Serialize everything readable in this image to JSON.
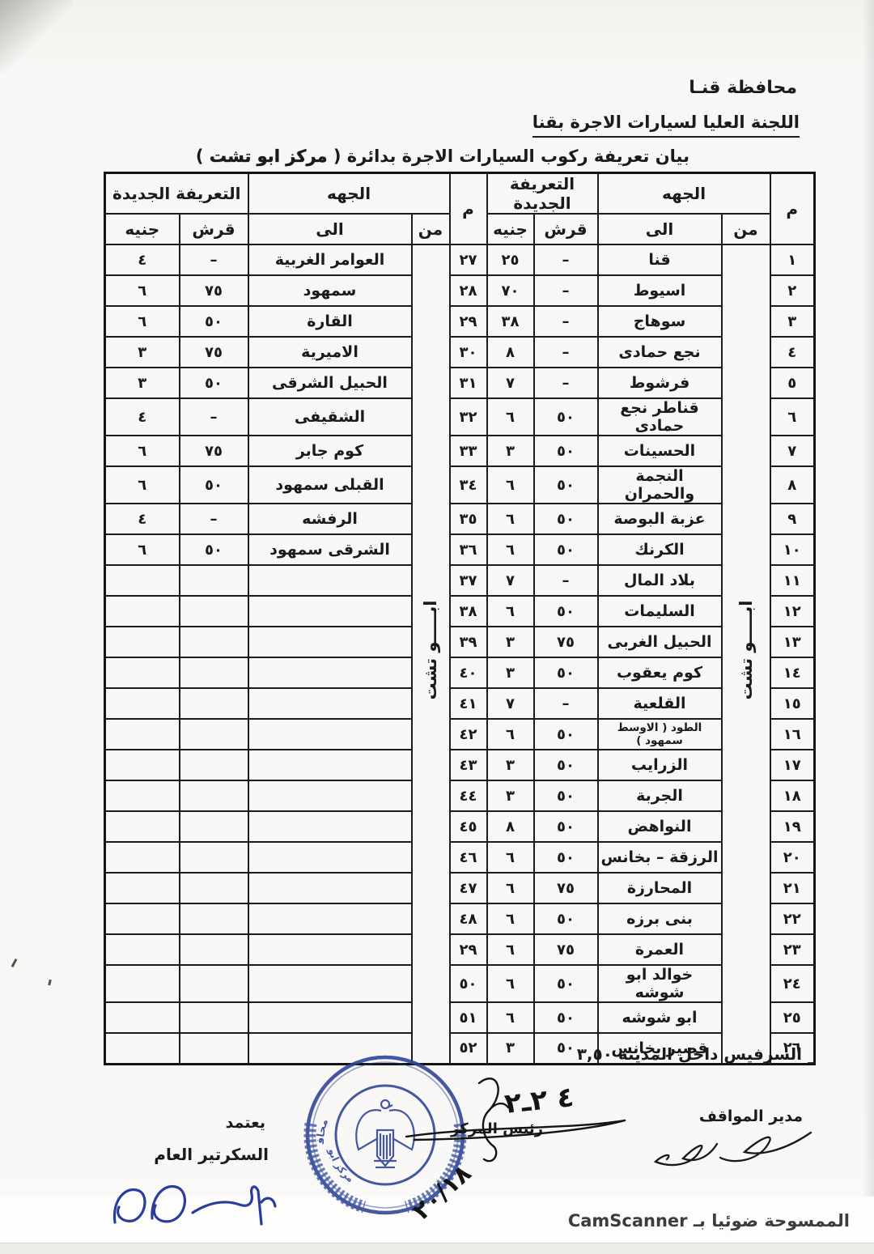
{
  "header": {
    "governorate": "محافظة قنـا",
    "committee": "اللجنة العليا لسيارات الاجرة بقنا",
    "title_prefix": "بيان تعريفة ركوب السيارات الاجرة بدائرة ( ",
    "title_name": "مركز ابو تشت",
    "title_suffix": " )"
  },
  "table": {
    "headers": {
      "m": "م",
      "direction_group": "الجهه",
      "from": "من",
      "to": "الى",
      "tariff_group": "التعريفة الجديدة",
      "qirsh": "قرش",
      "geneh": "جنيه"
    },
    "from_vertical": "ابـــــو تشت",
    "rows": [
      {
        "m_r": "١",
        "to_r": "قنا",
        "qirsh_r": "–",
        "geneh_r": "٢٥",
        "m_l": "٢٧",
        "to_l": "العوامر الغربية",
        "qirsh_l": "–",
        "geneh_l": "٤"
      },
      {
        "m_r": "٢",
        "to_r": "اسيوط",
        "qirsh_r": "–",
        "geneh_r": "٧٠",
        "m_l": "٢٨",
        "to_l": "سمهود",
        "qirsh_l": "٧٥",
        "geneh_l": "٦"
      },
      {
        "m_r": "٣",
        "to_r": "سوهاج",
        "qirsh_r": "–",
        "geneh_r": "٣٨",
        "m_l": "٢٩",
        "to_l": "القارة",
        "qirsh_l": "٥٠",
        "geneh_l": "٦"
      },
      {
        "m_r": "٤",
        "to_r": "نجع حمادى",
        "qirsh_r": "–",
        "geneh_r": "٨",
        "m_l": "٣٠",
        "to_l": "الاميرية",
        "qirsh_l": "٧٥",
        "geneh_l": "٣"
      },
      {
        "m_r": "٥",
        "to_r": "فرشوط",
        "qirsh_r": "–",
        "geneh_r": "٧",
        "m_l": "٣١",
        "to_l": "الحبيل الشرقى",
        "qirsh_l": "٥٠",
        "geneh_l": "٣"
      },
      {
        "m_r": "٦",
        "to_r": "قناطر نجع حمادى",
        "qirsh_r": "٥٠",
        "geneh_r": "٦",
        "m_l": "٣٢",
        "to_l": "الشقيفى",
        "qirsh_l": "–",
        "geneh_l": "٤"
      },
      {
        "m_r": "٧",
        "to_r": "الحسينات",
        "qirsh_r": "٥٠",
        "geneh_r": "٣",
        "m_l": "٣٣",
        "to_l": "كوم جابر",
        "qirsh_l": "٧٥",
        "geneh_l": "٦"
      },
      {
        "m_r": "٨",
        "to_r": "النجمة والحمران",
        "qirsh_r": "٥٠",
        "geneh_r": "٦",
        "m_l": "٣٤",
        "to_l": "القبلى سمهود",
        "qirsh_l": "٥٠",
        "geneh_l": "٦"
      },
      {
        "m_r": "٩",
        "to_r": "عزبة البوصة",
        "qirsh_r": "٥٠",
        "geneh_r": "٦",
        "m_l": "٣٥",
        "to_l": "الرفشه",
        "qirsh_l": "–",
        "geneh_l": "٤"
      },
      {
        "m_r": "١٠",
        "to_r": "الكرنك",
        "qirsh_r": "٥٠",
        "geneh_r": "٦",
        "m_l": "٣٦",
        "to_l": "الشرقى سمهود",
        "qirsh_l": "٥٠",
        "geneh_l": "٦"
      },
      {
        "m_r": "١١",
        "to_r": "بلاد المال",
        "qirsh_r": "–",
        "geneh_r": "٧",
        "m_l": "٣٧",
        "to_l": "",
        "qirsh_l": "",
        "geneh_l": ""
      },
      {
        "m_r": "١٢",
        "to_r": "السليمات",
        "qirsh_r": "٥٠",
        "geneh_r": "٦",
        "m_l": "٣٨",
        "to_l": "",
        "qirsh_l": "",
        "geneh_l": ""
      },
      {
        "m_r": "١٣",
        "to_r": "الحبيل الغربى",
        "qirsh_r": "٧٥",
        "geneh_r": "٣",
        "m_l": "٣٩",
        "to_l": "",
        "qirsh_l": "",
        "geneh_l": ""
      },
      {
        "m_r": "١٤",
        "to_r": "كوم يعقوب",
        "qirsh_r": "٥٠",
        "geneh_r": "٣",
        "m_l": "٤٠",
        "to_l": "",
        "qirsh_l": "",
        "geneh_l": ""
      },
      {
        "m_r": "١٥",
        "to_r": "القلعية",
        "qirsh_r": "–",
        "geneh_r": "٧",
        "m_l": "٤١",
        "to_l": "",
        "qirsh_l": "",
        "geneh_l": ""
      },
      {
        "m_r": "١٦",
        "to_r": "الطود ( الاوسط سمهود )",
        "qirsh_r": "٥٠",
        "geneh_r": "٦",
        "m_l": "٤٢",
        "to_l": "",
        "qirsh_l": "",
        "geneh_l": ""
      },
      {
        "m_r": "١٧",
        "to_r": "الزرايب",
        "qirsh_r": "٥٠",
        "geneh_r": "٣",
        "m_l": "٤٣",
        "to_l": "",
        "qirsh_l": "",
        "geneh_l": ""
      },
      {
        "m_r": "١٨",
        "to_r": "الجربة",
        "qirsh_r": "٥٠",
        "geneh_r": "٣",
        "m_l": "٤٤",
        "to_l": "",
        "qirsh_l": "",
        "geneh_l": ""
      },
      {
        "m_r": "١٩",
        "to_r": "النواهض",
        "qirsh_r": "٥٠",
        "geneh_r": "٨",
        "m_l": "٤٥",
        "to_l": "",
        "qirsh_l": "",
        "geneh_l": ""
      },
      {
        "m_r": "٢٠",
        "to_r": "الرزقة – بخانس",
        "qirsh_r": "٥٠",
        "geneh_r": "٦",
        "m_l": "٤٦",
        "to_l": "",
        "qirsh_l": "",
        "geneh_l": ""
      },
      {
        "m_r": "٢١",
        "to_r": "المحارزة",
        "qirsh_r": "٧٥",
        "geneh_r": "٦",
        "m_l": "٤٧",
        "to_l": "",
        "qirsh_l": "",
        "geneh_l": ""
      },
      {
        "m_r": "٢٢",
        "to_r": "بنى برزه",
        "qirsh_r": "٥٠",
        "geneh_r": "٦",
        "m_l": "٤٨",
        "to_l": "",
        "qirsh_l": "",
        "geneh_l": ""
      },
      {
        "m_r": "٢٣",
        "to_r": "العمرة",
        "qirsh_r": "٧٥",
        "geneh_r": "٦",
        "m_l": "٢٩",
        "to_l": "",
        "qirsh_l": "",
        "geneh_l": ""
      },
      {
        "m_r": "٢٤",
        "to_r": "خوالد ابو شوشه",
        "qirsh_r": "٥٠",
        "geneh_r": "٦",
        "m_l": "٥٠",
        "to_l": "",
        "qirsh_l": "",
        "geneh_l": ""
      },
      {
        "m_r": "٢٥",
        "to_r": "ابو شوشه",
        "qirsh_r": "٥٠",
        "geneh_r": "٦",
        "m_l": "٥١",
        "to_l": "",
        "qirsh_l": "",
        "geneh_l": ""
      },
      {
        "m_r": "٢٦",
        "to_r": "قصير بخانس",
        "qirsh_r": "٥٠",
        "geneh_r": "٣",
        "m_l": "٥٢",
        "to_l": "",
        "qirsh_l": "",
        "geneh_l": ""
      }
    ]
  },
  "footnote": "_ السرفيس داخل المدينة ٣,٥٠",
  "signatures": {
    "stands_manager": "مدير المواقف",
    "center_head": "رئيس المركز",
    "approved": "يعتمد",
    "secretary_general": "السكرتير العام",
    "handwriting_top": "٤ ٢ـ٢",
    "handwriting_bottom": "٢٠/١٨"
  },
  "stamp": {
    "arc_top": "محافظة قنا الوحدة المحلية",
    "arc_bottom": "مركز ابو تشت",
    "color": "#2c4396"
  },
  "footer": {
    "scan_note": "الممسوحة ضوئيا بـ CamScanner"
  }
}
